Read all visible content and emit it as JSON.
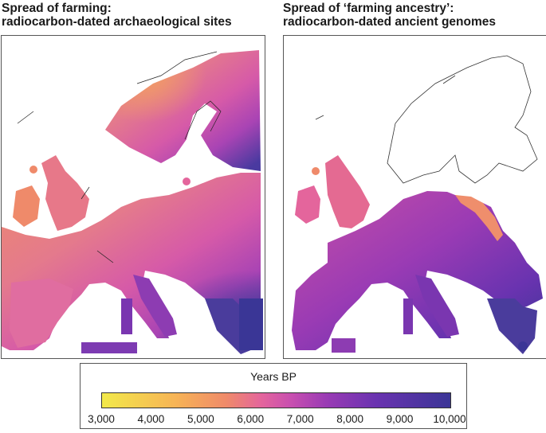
{
  "panels": [
    {
      "title_line1": "Spread of farming:",
      "title_line2": "radiocarbon-dated archaeological sites"
    },
    {
      "title_line1": "Spread of ‘farming ancestry’:",
      "title_line2": "radiocarbon-dated ancient genomes"
    }
  ],
  "legend": {
    "title": "Years BP",
    "ticks": [
      "3,000",
      "4,000",
      "5,000",
      "6,000",
      "7,000",
      "8,000",
      "9,000",
      "10,000"
    ],
    "range": [
      3000,
      10000
    ],
    "colors": {
      "3000": "#f2e94a",
      "4500": "#f7b356",
      "5500": "#ef8a6a",
      "6200": "#e4659c",
      "6800": "#c84fb0",
      "7500": "#9a3bb4",
      "8500": "#6a33b0",
      "10000": "#3b3596"
    }
  }
}
